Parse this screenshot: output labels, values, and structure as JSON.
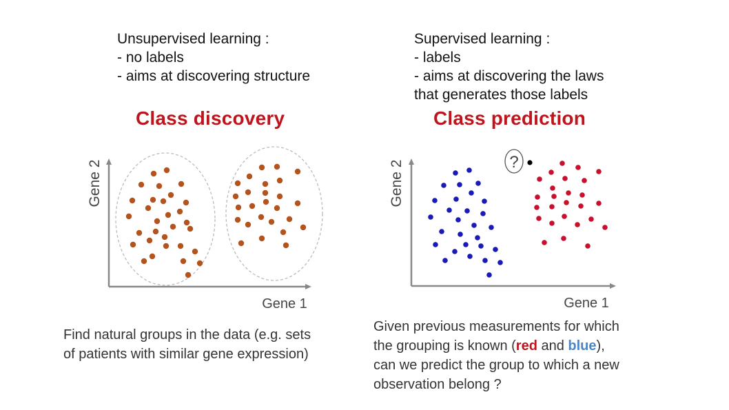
{
  "unsupervised": {
    "heading": "Unsupervised learning :",
    "points": [
      "- no labels",
      "- aims at discovering structure"
    ]
  },
  "supervised": {
    "heading": "Supervised learning :",
    "points": [
      "- labels",
      "- aims at discovering the laws",
      "that generates those labels"
    ]
  },
  "class_discovery": {
    "title": "Class discovery",
    "x_axis_label": "Gene 1",
    "y_axis_label": "Gene 2",
    "caption_lines": [
      "Find natural groups in the data (e.g. sets",
      "of patients with similar gene expression)"
    ]
  },
  "class_prediction": {
    "title": "Class prediction",
    "x_axis_label": "Gene 1",
    "y_axis_label": "Gene 2",
    "unknown_marker": "?",
    "caption": {
      "line1": "Given previous measurements for which",
      "line2_before": "the grouping is known (",
      "word_red": "red",
      "word_and": " and ",
      "word_blue": "blue",
      "line2_after": "),",
      "line3": "can we predict the group to which a new",
      "line4": "observation belong ?"
    }
  },
  "colors": {
    "title": "#c0141c",
    "discovery_point": "#b5531f",
    "class_red": "#c8102e",
    "class_blue": "#1a1ab8",
    "new_point": "#000000",
    "axis": "#888888",
    "cluster_outline": "#bbbbbb"
  }
}
